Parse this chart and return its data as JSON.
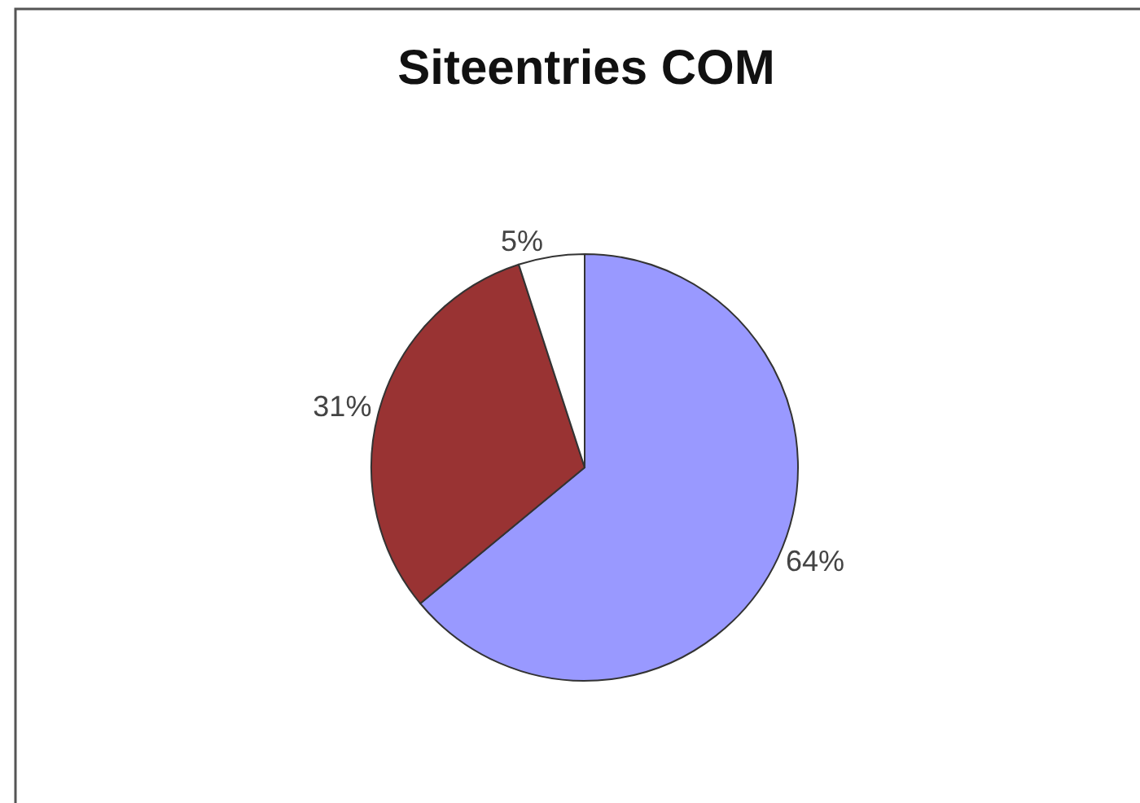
{
  "chart_data": {
    "type": "pie",
    "title": "Siteentries COM",
    "categories": [
      null,
      null,
      null
    ],
    "values": [
      64,
      31,
      5
    ],
    "value_labels": [
      "64%",
      "31%",
      "5%"
    ],
    "colors": [
      "#9999ff",
      "#993333",
      "#ffffff"
    ],
    "legend": false
  }
}
